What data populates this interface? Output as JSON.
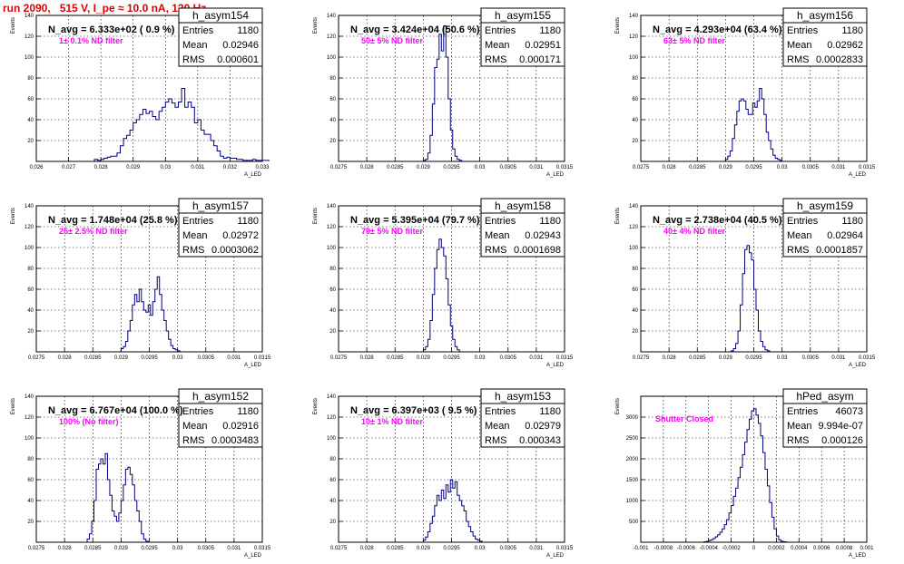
{
  "title": "run 2090,   515 V, I_pe ≈ 10.0 nA, 120 Hz",
  "colors": {
    "histogram_line": "#000080",
    "filter_label": "#ff00ff",
    "title": "#e00000"
  },
  "chart_data": [
    {
      "type": "bar",
      "hist_name": "h_asym154",
      "ylabel": "Events",
      "xlabel": "A_LED",
      "annotation": "N_avg = 6.333e+02 ( 0.9 %)",
      "filter": "1± 0.1% ND filter",
      "stats": {
        "Entries": "1180",
        "Mean": "0.02946",
        "RMS": "0.000601"
      },
      "xlim": [
        0.026,
        0.033
      ],
      "ylim": [
        0,
        140
      ],
      "xticks": [
        0.026,
        0.027,
        0.028,
        0.029,
        0.03,
        0.031,
        0.032,
        0.033
      ],
      "xtick_labels": [
        "0.026",
        "0.027",
        "0.028",
        "0.029",
        "0.03",
        "0.031",
        "0.032",
        "0.033"
      ],
      "yticks": [
        20,
        40,
        60,
        80,
        100,
        120,
        140
      ],
      "x_start": 0.0278,
      "bin_width": 0.0001,
      "values": [
        2,
        1,
        2,
        3,
        4,
        5,
        5,
        8,
        15,
        22,
        25,
        30,
        37,
        40,
        45,
        50,
        46,
        48,
        43,
        40,
        48,
        52,
        57,
        60,
        56,
        52,
        57,
        70,
        52,
        57,
        52,
        37,
        40,
        30,
        26,
        26,
        20,
        15,
        10,
        5,
        3,
        4,
        3,
        3,
        2,
        2,
        1,
        1,
        1,
        2,
        1,
        1,
        1,
        1
      ]
    },
    {
      "type": "bar",
      "hist_name": "h_asym155",
      "ylabel": "Events",
      "xlabel": "A_LED",
      "annotation": "N_avg = 3.424e+04 (50.6 %)",
      "filter": "50± 5% ND filter",
      "stats": {
        "Entries": "1180",
        "Mean": "0.02951",
        "RMS": "0.000171"
      },
      "xlim": [
        0.0275,
        0.0315
      ],
      "ylim": [
        0,
        140
      ],
      "xticks": [
        0.0275,
        0.028,
        0.0285,
        0.029,
        0.0295,
        0.03,
        0.0305,
        0.031,
        0.0315
      ],
      "xtick_labels": [
        "0.0275",
        "0.028",
        "0.0285",
        "0.029",
        "0.0295",
        "0.03",
        "0.0305",
        "0.031",
        "0.0315"
      ],
      "yticks": [
        20,
        40,
        60,
        80,
        100,
        120,
        140
      ],
      "x_start": 0.029,
      "bin_width": 4e-05,
      "values": [
        1,
        2,
        8,
        25,
        55,
        90,
        98,
        122,
        106,
        130,
        100,
        60,
        30,
        12,
        5,
        2,
        1
      ]
    },
    {
      "type": "bar",
      "hist_name": "h_asym156",
      "ylabel": "Events",
      "xlabel": "A_LED",
      "annotation": "N_avg = 4.293e+04 (63.4 %)",
      "filter": "63± 5% ND filter",
      "stats": {
        "Entries": "1180",
        "Mean": "0.02962",
        "RMS": "0.0002833"
      },
      "xlim": [
        0.0275,
        0.0315
      ],
      "ylim": [
        0,
        140
      ],
      "xticks": [
        0.0275,
        0.028,
        0.0285,
        0.029,
        0.0295,
        0.03,
        0.0305,
        0.031,
        0.0315
      ],
      "xtick_labels": [
        "0.0275",
        "0.028",
        "0.0285",
        "0.029",
        "0.0295",
        "0.03",
        "0.0305",
        "0.031",
        "0.0315"
      ],
      "yticks": [
        20,
        40,
        60,
        80,
        100,
        120,
        140
      ],
      "x_start": 0.029,
      "bin_width": 4e-05,
      "values": [
        2,
        5,
        10,
        22,
        35,
        48,
        58,
        60,
        58,
        50,
        45,
        45,
        56,
        52,
        58,
        70,
        60,
        45,
        28,
        20,
        12,
        6,
        3,
        2,
        1
      ]
    },
    {
      "type": "bar",
      "hist_name": "h_asym157",
      "ylabel": "Events",
      "xlabel": "A_LED",
      "annotation": "N_avg = 1.748e+04 (25.8 %)",
      "filter": "25± 2.5% ND filter",
      "stats": {
        "Entries": "1180",
        "Mean": "0.02972",
        "RMS": "0.0003062"
      },
      "xlim": [
        0.0275,
        0.0315
      ],
      "ylim": [
        0,
        140
      ],
      "xticks": [
        0.0275,
        0.028,
        0.0285,
        0.029,
        0.0295,
        0.03,
        0.0305,
        0.031,
        0.0315
      ],
      "xtick_labels": [
        "0.0275",
        "0.028",
        "0.0285",
        "0.029",
        "0.0295",
        "0.03",
        "0.0305",
        "0.031",
        "0.0315"
      ],
      "yticks": [
        20,
        40,
        60,
        80,
        100,
        120,
        140
      ],
      "x_start": 0.029,
      "bin_width": 4e-05,
      "values": [
        3,
        5,
        10,
        20,
        30,
        45,
        55,
        48,
        60,
        48,
        40,
        38,
        45,
        35,
        48,
        60,
        72,
        55,
        40,
        30,
        20,
        12,
        6,
        3,
        2,
        1
      ]
    },
    {
      "type": "bar",
      "hist_name": "h_asym158",
      "ylabel": "Events",
      "xlabel": "A_LED",
      "annotation": "N_avg = 5.395e+04 (79.7 %)",
      "filter": "79± 5% ND filter",
      "stats": {
        "Entries": "1180",
        "Mean": "0.02943",
        "RMS": "0.0001698"
      },
      "xlim": [
        0.0275,
        0.0315
      ],
      "ylim": [
        0,
        140
      ],
      "xticks": [
        0.0275,
        0.028,
        0.0285,
        0.029,
        0.0295,
        0.03,
        0.0305,
        0.031,
        0.0315
      ],
      "xtick_labels": [
        "0.0275",
        "0.028",
        "0.0285",
        "0.029",
        "0.0295",
        "0.03",
        "0.0305",
        "0.031",
        "0.0315"
      ],
      "yticks": [
        20,
        40,
        60,
        80,
        100,
        120,
        140
      ],
      "x_start": 0.029,
      "bin_width": 4e-05,
      "values": [
        2,
        5,
        12,
        30,
        55,
        80,
        98,
        108,
        100,
        92,
        70,
        45,
        25,
        12,
        5,
        2
      ]
    },
    {
      "type": "bar",
      "hist_name": "h_asym159",
      "ylabel": "Events",
      "xlabel": "A_LED",
      "annotation": "N_avg = 2.738e+04 (40.5 %)",
      "filter": "40± 4% ND filter",
      "stats": {
        "Entries": "1180",
        "Mean": "0.02964",
        "RMS": "0.0001857"
      },
      "xlim": [
        0.0275,
        0.0315
      ],
      "ylim": [
        0,
        140
      ],
      "xticks": [
        0.0275,
        0.028,
        0.0285,
        0.029,
        0.0295,
        0.03,
        0.0305,
        0.031,
        0.0315
      ],
      "xtick_labels": [
        "0.0275",
        "0.028",
        "0.0285",
        "0.029",
        "0.0295",
        "0.03",
        "0.0305",
        "0.031",
        "0.0315"
      ],
      "yticks": [
        20,
        40,
        60,
        80,
        100,
        120,
        140
      ],
      "x_start": 0.0291,
      "bin_width": 4e-05,
      "values": [
        1,
        3,
        8,
        20,
        45,
        75,
        98,
        102,
        95,
        88,
        60,
        40,
        20,
        10,
        5,
        2,
        1
      ]
    },
    {
      "type": "bar",
      "hist_name": "h_asym152",
      "ylabel": "Events",
      "xlabel": "A_LED",
      "annotation": "N_avg = 6.767e+04 (100.0 %)",
      "filter": "100% (No filter)",
      "stats": {
        "Entries": "1180",
        "Mean": "0.02916",
        "RMS": "0.0003483"
      },
      "xlim": [
        0.0275,
        0.0315
      ],
      "ylim": [
        0,
        140
      ],
      "xticks": [
        0.0275,
        0.028,
        0.0285,
        0.029,
        0.0295,
        0.03,
        0.0305,
        0.031,
        0.0315
      ],
      "xtick_labels": [
        "0.0275",
        "0.028",
        "0.0285",
        "0.029",
        "0.0295",
        "0.03",
        "0.0305",
        "0.031",
        "0.0315"
      ],
      "yticks": [
        20,
        40,
        60,
        80,
        100,
        120,
        140
      ],
      "x_start": 0.0284,
      "bin_width": 4e-05,
      "values": [
        3,
        8,
        20,
        40,
        70,
        75,
        80,
        75,
        85,
        60,
        45,
        30,
        25,
        20,
        28,
        40,
        55,
        70,
        72,
        65,
        55,
        40,
        30,
        20,
        8,
        3,
        1
      ]
    },
    {
      "type": "bar",
      "hist_name": "h_asym153",
      "ylabel": "Events",
      "xlabel": "A_LED",
      "annotation": "N_avg = 6.397e+03 ( 9.5 %)",
      "filter": "10± 1% ND filter",
      "stats": {
        "Entries": "1180",
        "Mean": "0.02979",
        "RMS": "0.000343"
      },
      "xlim": [
        0.0275,
        0.0315
      ],
      "ylim": [
        0,
        140
      ],
      "xticks": [
        0.0275,
        0.028,
        0.0285,
        0.029,
        0.0295,
        0.03,
        0.0305,
        0.031,
        0.0315
      ],
      "xtick_labels": [
        "0.0275",
        "0.028",
        "0.0285",
        "0.029",
        "0.0295",
        "0.03",
        "0.0305",
        "0.031",
        "0.0315"
      ],
      "yticks": [
        20,
        40,
        60,
        80,
        100,
        120,
        140
      ],
      "x_start": 0.029,
      "bin_width": 4e-05,
      "values": [
        2,
        5,
        10,
        18,
        25,
        35,
        45,
        40,
        50,
        42,
        55,
        48,
        60,
        52,
        58,
        45,
        40,
        35,
        30,
        20,
        15,
        10,
        6,
        3,
        2,
        1
      ]
    },
    {
      "type": "bar",
      "hist_name": "hPed_asym",
      "ylabel": "Events",
      "xlabel": "A_LED",
      "annotation": "",
      "filter": "Shutter Closed",
      "stats": {
        "Entries": "46073",
        "Mean": "9.994e-07",
        "RMS": "0.000126"
      },
      "xlim": [
        -0.001,
        0.001
      ],
      "ylim": [
        0,
        3500
      ],
      "xticks": [
        -0.001,
        -0.0008,
        -0.0006,
        -0.0004,
        -0.0002,
        0,
        0.0002,
        0.0004,
        0.0006,
        0.0008,
        0.001
      ],
      "xtick_labels": [
        "-0.001",
        "-0.0008",
        "-0.0006",
        "-0.0004",
        "-0.0002",
        "0",
        "0.0002",
        "0.0004",
        "0.0006",
        "0.0008",
        "0.001"
      ],
      "yticks": [
        500,
        1000,
        1500,
        2000,
        2500,
        3000
      ],
      "x_start": -0.00044,
      "bin_width": 2e-05,
      "values": [
        10,
        20,
        40,
        60,
        90,
        130,
        180,
        240,
        320,
        420,
        540,
        700,
        880,
        1100,
        1300,
        1550,
        1800,
        2100,
        2400,
        2700,
        2950,
        3150,
        3200,
        3050,
        2850,
        2550,
        2150,
        1750,
        1350,
        950,
        600,
        320,
        150,
        60,
        25,
        10,
        5
      ]
    }
  ]
}
